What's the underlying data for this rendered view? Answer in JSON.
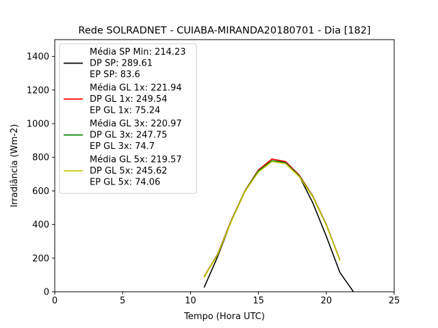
{
  "chart_data": {
    "type": "line",
    "title": "Rede SOLRADNET - CUIABA-MIRANDA20180701 - Dia [182]",
    "xlabel": "Tempo (Hora UTC)",
    "ylabel": "Irradiância (Wm-2)",
    "xlim": [
      0,
      25
    ],
    "ylim": [
      0,
      1500
    ],
    "xticks": [
      0,
      5,
      10,
      15,
      20,
      25
    ],
    "yticks": [
      0,
      200,
      400,
      600,
      800,
      1000,
      1200,
      1400
    ],
    "grid": false,
    "legend_position": "top-left",
    "series": [
      {
        "name": "SP",
        "color": "#000000",
        "legend_lines": [
          "Média SP Min: 214.23",
          "DP SP: 289.61",
          "EP SP: 83.6"
        ],
        "x": [
          11,
          12,
          13,
          14,
          15,
          16,
          17,
          18,
          19,
          20,
          21,
          22
        ],
        "y": [
          25,
          210,
          420,
          595,
          725,
          780,
          770,
          690,
          530,
          330,
          115,
          0
        ]
      },
      {
        "name": "GL 1x",
        "color": "#ff0000",
        "legend_lines": [
          "Média GL 1x: 221.94",
          "DP GL 1x: 249.54",
          "EP GL 1x: 75.24"
        ],
        "x": [
          11,
          12,
          13,
          14,
          15,
          16,
          17,
          18,
          19,
          20,
          21
        ],
        "y": [
          90,
          225,
          425,
          600,
          725,
          790,
          775,
          695,
          570,
          400,
          190
        ]
      },
      {
        "name": "GL 3x",
        "color": "#008000",
        "legend_lines": [
          "Média GL 3x: 220.97",
          "DP GL 3x: 247.75",
          "EP GL 3x: 74.7"
        ],
        "x": [
          11,
          12,
          13,
          14,
          15,
          16,
          17,
          18,
          19,
          20,
          21
        ],
        "y": [
          88,
          223,
          422,
          598,
          720,
          780,
          768,
          690,
          568,
          398,
          188
        ]
      },
      {
        "name": "GL 5x",
        "color": "#c8c800",
        "legend_lines": [
          "Média GL 5x: 219.57",
          "DP GL 5x: 245.62",
          "EP GL 5x: 74.06"
        ],
        "x": [
          11,
          12,
          13,
          14,
          15,
          16,
          17,
          18,
          19,
          20,
          21
        ],
        "y": [
          86,
          221,
          418,
          595,
          712,
          775,
          762,
          685,
          565,
          395,
          186
        ]
      }
    ]
  }
}
